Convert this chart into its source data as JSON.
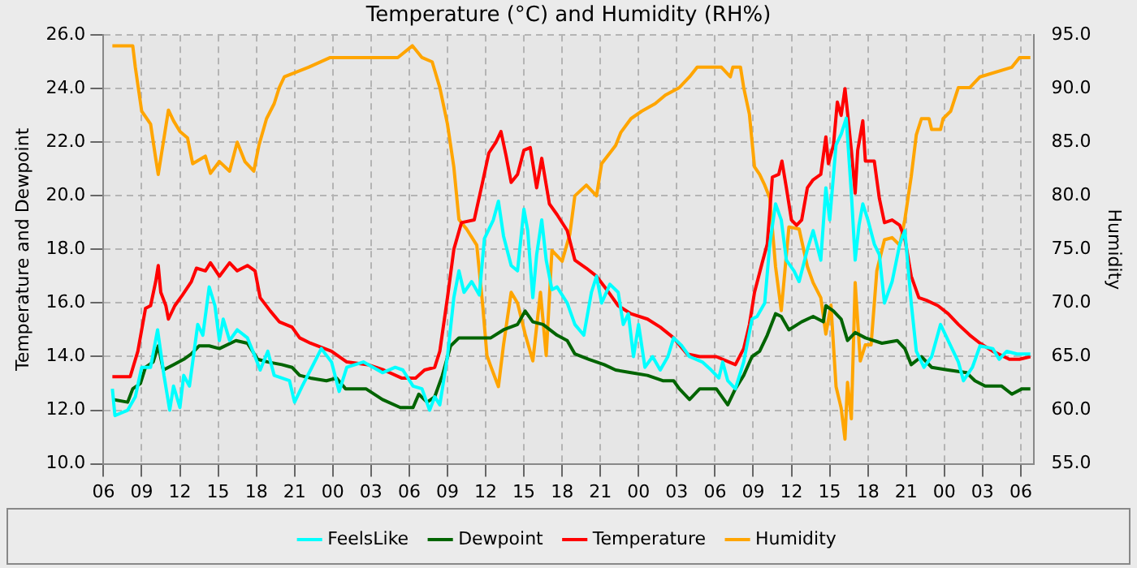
{
  "chart_data": {
    "type": "line",
    "title": "Temperature (°C) and Humidity (RH%)",
    "ylabel": "Temperature and Dewpoint",
    "y2label": "Humidity",
    "xlim": [
      6,
      79
    ],
    "xticks": [
      {
        "value": 6,
        "label": "06"
      },
      {
        "value": 9,
        "label": "09"
      },
      {
        "value": 12,
        "label": "12"
      },
      {
        "value": 15,
        "label": "15"
      },
      {
        "value": 18,
        "label": "18"
      },
      {
        "value": 21,
        "label": "21"
      },
      {
        "value": 24,
        "label": "00"
      },
      {
        "value": 27,
        "label": "03"
      },
      {
        "value": 30,
        "label": "06"
      },
      {
        "value": 33,
        "label": "09"
      },
      {
        "value": 36,
        "label": "12"
      },
      {
        "value": 39,
        "label": "15"
      },
      {
        "value": 42,
        "label": "18"
      },
      {
        "value": 45,
        "label": "21"
      },
      {
        "value": 48,
        "label": "00"
      },
      {
        "value": 51,
        "label": "03"
      },
      {
        "value": 54,
        "label": "06"
      },
      {
        "value": 57,
        "label": "09"
      },
      {
        "value": 60,
        "label": "12"
      },
      {
        "value": 63,
        "label": "15"
      },
      {
        "value": 66,
        "label": "18"
      },
      {
        "value": 69,
        "label": "21"
      },
      {
        "value": 72,
        "label": "00"
      },
      {
        "value": 75,
        "label": "03"
      },
      {
        "value": 78,
        "label": "06"
      }
    ],
    "ylim": [
      10,
      26
    ],
    "yticks": [
      {
        "value": 10,
        "label": "10.0"
      },
      {
        "value": 12,
        "label": "12.0"
      },
      {
        "value": 14,
        "label": "14.0"
      },
      {
        "value": 16,
        "label": "16.0"
      },
      {
        "value": 18,
        "label": "18.0"
      },
      {
        "value": 20,
        "label": "20.0"
      },
      {
        "value": 22,
        "label": "22.0"
      },
      {
        "value": 24,
        "label": "24.0"
      },
      {
        "value": 26,
        "label": "26.0"
      }
    ],
    "y2lim": [
      55,
      95
    ],
    "y2ticks": [
      {
        "value": 55,
        "label": "55.0"
      },
      {
        "value": 60,
        "label": "60.0"
      },
      {
        "value": 65,
        "label": "65.0"
      },
      {
        "value": 70,
        "label": "70.0"
      },
      {
        "value": 75,
        "label": "75.0"
      },
      {
        "value": 80,
        "label": "80.0"
      },
      {
        "value": 85,
        "label": "85.0"
      },
      {
        "value": 90,
        "label": "90.0"
      },
      {
        "value": 95,
        "label": "95.0"
      }
    ],
    "grid": true,
    "legend": "bottom",
    "line_style": "solid",
    "series": [
      {
        "name": "FeelsLike",
        "color": "#00ffff",
        "x": [
          6.7,
          6.9,
          7.9,
          8.5,
          9,
          9.7,
          10.25,
          10.75,
          11.2,
          11.5,
          12,
          12.3,
          12.75,
          13.4,
          13.8,
          14.3,
          14.75,
          15.1,
          15.4,
          15.9,
          16.5,
          17.3,
          17.9,
          18.3,
          18.9,
          19.4,
          20,
          20.6,
          21,
          21.6,
          22.25,
          23.1,
          23.9,
          24.5,
          25.1,
          26.4,
          27.9,
          28.9,
          29.5,
          30.3,
          31,
          31.6,
          32,
          32.4,
          33,
          33.5,
          33.9,
          34.3,
          34.9,
          35.5,
          35.9,
          36.6,
          37,
          37.4,
          38,
          38.5,
          39,
          39.3,
          39.7,
          40,
          40.4,
          40.75,
          41.2,
          41.6,
          42.4,
          43,
          43.7,
          44.3,
          44.7,
          45.1,
          45.75,
          46.4,
          46.8,
          47.2,
          47.6,
          48,
          48.5,
          49.1,
          49.7,
          50.3,
          50.75,
          51.4,
          52,
          53,
          53.7,
          54.3,
          54.6,
          55,
          55.6,
          56.25,
          56.9,
          57.3,
          57.9,
          58.3,
          58.75,
          59.2,
          59.6,
          60.2,
          60.6,
          61.25,
          61.7,
          62.3,
          62.7,
          63,
          63.5,
          63.9,
          64.3,
          64.7,
          65,
          65.3,
          65.6,
          66,
          66.5,
          66.9,
          67.3,
          67.9,
          68.5,
          68.9,
          69.4,
          69.8,
          70.4,
          71,
          71.7,
          72.1,
          72.5,
          73.1,
          73.5,
          74.2,
          74.8,
          75.8,
          76.3,
          76.9,
          77.7,
          78.75
        ],
        "values": [
          12.8,
          11.8,
          12.0,
          12.5,
          13.6,
          13.6,
          15.0,
          13.3,
          12.0,
          12.9,
          12.1,
          13.3,
          12.9,
          15.2,
          14.8,
          16.6,
          15.9,
          14.6,
          15.4,
          14.6,
          15.0,
          14.7,
          14.0,
          13.5,
          14.2,
          13.3,
          13.2,
          13.1,
          12.3,
          12.9,
          13.5,
          14.3,
          13.8,
          12.7,
          13.6,
          13.8,
          13.4,
          13.6,
          13.5,
          12.9,
          12.8,
          12.0,
          12.5,
          12.2,
          14.0,
          16.2,
          17.2,
          16.4,
          16.8,
          16.3,
          18.4,
          19.1,
          19.8,
          18.5,
          17.4,
          17.2,
          19.5,
          18.7,
          16.2,
          17.8,
          19.1,
          17.6,
          16.5,
          16.6,
          16.0,
          15.2,
          14.8,
          16.4,
          17.0,
          16.0,
          16.7,
          16.4,
          15.2,
          15.6,
          14.0,
          15.2,
          13.6,
          14.0,
          13.5,
          14.0,
          14.7,
          14.4,
          14.0,
          13.8,
          13.5,
          13.2,
          13.8,
          13.1,
          12.8,
          13.8,
          15.4,
          15.5,
          16.0,
          18.2,
          19.7,
          19.1,
          17.6,
          17.2,
          16.8,
          18.0,
          18.7,
          17.6,
          20.3,
          19.1,
          21.9,
          22.3,
          22.9,
          20.1,
          17.6,
          18.9,
          19.7,
          19.1,
          18.2,
          17.8,
          16.0,
          16.8,
          18.2,
          18.7,
          16.0,
          14.2,
          13.6,
          14.0,
          15.2,
          14.8,
          14.4,
          13.8,
          13.1,
          13.6,
          14.4,
          14.3,
          13.9,
          14.2,
          14.1,
          14.1
        ]
      },
      {
        "name": "Dewpoint",
        "color": "#006400",
        "x": [
          6.7,
          7.9,
          8.3,
          8.9,
          9.3,
          9.9,
          10.3,
          10.7,
          11.5,
          12.3,
          12.9,
          13.5,
          14.3,
          15.1,
          16.4,
          17.3,
          18.1,
          18.9,
          20,
          20.8,
          21.4,
          22.25,
          23.5,
          24.3,
          25,
          26.6,
          27.9,
          29.3,
          30.3,
          30.75,
          31.4,
          32,
          32.6,
          33.25,
          33.9,
          35.3,
          36.4,
          37.4,
          38.5,
          39.1,
          39.7,
          40.5,
          41.6,
          42.4,
          43,
          44.1,
          45.3,
          46.2,
          47.4,
          48.7,
          49.9,
          50.75,
          51.2,
          52,
          52.8,
          54.1,
          55,
          55.6,
          56.25,
          56.9,
          57.5,
          58.1,
          58.75,
          59.2,
          59.8,
          60.8,
          61.7,
          62.5,
          62.7,
          63.3,
          63.9,
          64.4,
          65,
          65.8,
          67.1,
          68.3,
          68.9,
          69.4,
          70.2,
          71,
          72.3,
          73.75,
          74.4,
          75.2,
          76.5,
          77.3,
          78.1,
          78.75
        ],
        "values": [
          12.4,
          12.3,
          12.8,
          13.0,
          13.6,
          13.8,
          14.4,
          13.5,
          13.7,
          13.9,
          14.1,
          14.4,
          14.4,
          14.3,
          14.6,
          14.5,
          13.9,
          13.8,
          13.7,
          13.6,
          13.3,
          13.2,
          13.1,
          13.2,
          12.8,
          12.8,
          12.4,
          12.1,
          12.1,
          12.6,
          12.3,
          12.5,
          13.3,
          14.4,
          14.7,
          14.7,
          14.7,
          15.0,
          15.2,
          15.7,
          15.3,
          15.2,
          14.8,
          14.6,
          14.1,
          13.9,
          13.7,
          13.5,
          13.4,
          13.3,
          13.1,
          13.1,
          12.8,
          12.4,
          12.8,
          12.8,
          12.2,
          12.8,
          13.3,
          14.0,
          14.2,
          14.8,
          15.6,
          15.5,
          15.0,
          15.3,
          15.5,
          15.3,
          15.9,
          15.7,
          15.4,
          14.6,
          14.9,
          14.7,
          14.5,
          14.6,
          14.3,
          13.7,
          14.0,
          13.6,
          13.5,
          13.4,
          13.1,
          12.9,
          12.9,
          12.6,
          12.8,
          12.8
        ]
      },
      {
        "name": "Temperature",
        "color": "#ff0000",
        "x": [
          6.7,
          8.1,
          8.7,
          9.3,
          9.7,
          10.1,
          10.3,
          10.5,
          10.9,
          11.1,
          11.6,
          12.2,
          12.9,
          13.3,
          14,
          14.4,
          15.1,
          15.9,
          16.5,
          17.3,
          17.9,
          18.3,
          19.1,
          19.8,
          20.8,
          21.4,
          22.25,
          23.9,
          25.1,
          26.75,
          28,
          29.4,
          30.5,
          31.2,
          32,
          32.4,
          33,
          33.5,
          34.1,
          35.1,
          35.75,
          36.25,
          36.8,
          37.2,
          37.6,
          38,
          38.5,
          39,
          39.5,
          40,
          40.4,
          41,
          41.6,
          42.4,
          43,
          43.9,
          44.7,
          45.5,
          46.4,
          47.4,
          48.7,
          49.7,
          50.75,
          51.8,
          52.8,
          54.1,
          55.1,
          55.6,
          56.25,
          56.7,
          57.1,
          57.7,
          58.1,
          58.5,
          59,
          59.25,
          59.6,
          60,
          60.4,
          60.8,
          61.25,
          61.7,
          62.3,
          62.7,
          62.9,
          63.3,
          63.6,
          63.9,
          64.2,
          64.4,
          64.7,
          65,
          65.2,
          65.6,
          65.8,
          66.5,
          66.9,
          67.3,
          67.9,
          68.5,
          68.9,
          69.4,
          70,
          70.6,
          71.5,
          72.3,
          73.1,
          74,
          74.8,
          75.8,
          77.1,
          77.9,
          78.75
        ],
        "values": [
          13.25,
          13.25,
          14.2,
          15.8,
          15.9,
          16.8,
          17.4,
          16.4,
          15.9,
          15.4,
          15.9,
          16.3,
          16.8,
          17.3,
          17.2,
          17.5,
          17.0,
          17.5,
          17.2,
          17.4,
          17.2,
          16.2,
          15.7,
          15.3,
          15.1,
          14.7,
          14.5,
          14.2,
          13.8,
          13.7,
          13.5,
          13.2,
          13.2,
          13.5,
          13.6,
          14.2,
          16.2,
          18.0,
          19.0,
          19.1,
          20.5,
          21.6,
          22.0,
          22.4,
          21.5,
          20.5,
          20.8,
          21.7,
          21.8,
          20.3,
          21.4,
          19.7,
          19.3,
          18.7,
          17.6,
          17.3,
          17.0,
          16.5,
          15.9,
          15.6,
          15.4,
          15.1,
          14.7,
          14.1,
          14.0,
          14.0,
          13.8,
          13.7,
          14.3,
          15.2,
          16.4,
          17.5,
          18.2,
          20.7,
          20.8,
          21.3,
          20.3,
          19.1,
          18.9,
          19.1,
          20.3,
          20.6,
          20.8,
          22.2,
          21.2,
          21.9,
          23.5,
          23.0,
          24.0,
          23.1,
          21.7,
          20.1,
          21.7,
          22.8,
          21.3,
          21.3,
          19.9,
          19.0,
          19.1,
          18.9,
          18.4,
          17.0,
          16.2,
          16.1,
          15.9,
          15.6,
          15.2,
          14.8,
          14.5,
          14.2,
          13.9,
          13.9,
          14.0
        ]
      },
      {
        "name": "Humidity",
        "color": "#ffa500",
        "axis": "y2",
        "x": [
          6.7,
          8.3,
          8.5,
          9,
          9.7,
          10.1,
          10.3,
          10.7,
          11.1,
          11.5,
          12,
          12.6,
          13,
          14,
          14.4,
          15.1,
          15.9,
          16.5,
          17.1,
          17.8,
          18.2,
          18.8,
          19.4,
          19.8,
          20.2,
          22.1,
          23.8,
          29.1,
          30.25,
          31,
          31.8,
          32.4,
          33,
          33.5,
          33.9,
          34.5,
          35.3,
          35.75,
          36.1,
          36.4,
          37,
          37.4,
          38,
          38.5,
          39.1,
          39.7,
          40.3,
          40.75,
          41.2,
          42,
          42.6,
          43,
          43.9,
          44.7,
          45.1,
          46.2,
          46.6,
          47.4,
          48.25,
          49.3,
          50.1,
          51.2,
          52,
          52.6,
          54.5,
          55.2,
          55.4,
          56,
          56.25,
          56.7,
          57.1,
          57.5,
          57.9,
          58.3,
          58.75,
          59.2,
          59.4,
          59.8,
          60.6,
          61.25,
          61.7,
          62.3,
          62.7,
          63.1,
          63.5,
          63.9,
          64.2,
          64.4,
          64.7,
          65,
          65.4,
          65.8,
          66.25,
          66.7,
          67.3,
          67.9,
          68.5,
          68.9,
          69.4,
          69.8,
          70.2,
          70.8,
          71,
          71.7,
          71.9,
          72.5,
          73.1,
          74,
          74.8,
          77.3,
          77.9,
          78.75
        ],
        "values": [
          94,
          94,
          92,
          87.9,
          86.7,
          83.5,
          82,
          85,
          88,
          87,
          86,
          85.4,
          83,
          83.7,
          82.1,
          83.2,
          82.3,
          85,
          83.2,
          82.3,
          84.7,
          87.2,
          88.6,
          90.1,
          91.1,
          92,
          92.9,
          92.9,
          94,
          92.9,
          92.5,
          90.1,
          86.7,
          82.7,
          77.8,
          76.9,
          75.4,
          70,
          65.1,
          64.1,
          62.2,
          66.1,
          71,
          70,
          67.1,
          64.6,
          71,
          65.1,
          74.9,
          73.9,
          76.4,
          80,
          81,
          80,
          83,
          84.7,
          85.9,
          87.2,
          87.9,
          88.6,
          89.4,
          90.1,
          91.1,
          92,
          92,
          91.1,
          92,
          92,
          90.1,
          87.6,
          82.7,
          82,
          81,
          79.8,
          73.4,
          69.3,
          71.9,
          77.1,
          76.9,
          73.4,
          71.9,
          70.5,
          67.1,
          69.8,
          62.2,
          60.2,
          57.3,
          62.6,
          59.2,
          71.9,
          64.6,
          66.1,
          66.1,
          73,
          75.9,
          76.1,
          75.4,
          77.8,
          81.8,
          85.7,
          87.2,
          87.2,
          86.2,
          86.2,
          87.2,
          87.9,
          90.1,
          90.1,
          91.1,
          92,
          92.9,
          92.9
        ]
      }
    ]
  }
}
